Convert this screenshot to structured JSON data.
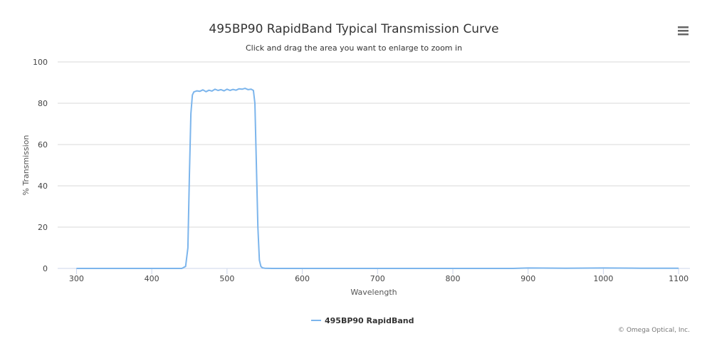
{
  "chart_data": {
    "type": "line",
    "title": "495BP90 RapidBand Typical Transmission Curve",
    "subtitle": "Click and drag the area you want to enlarge to zoom in",
    "xlabel": "Wavelength",
    "ylabel": "% Transmission",
    "xlim": [
      275,
      1115
    ],
    "ylim": [
      0,
      100
    ],
    "x_ticks": [
      300,
      400,
      500,
      600,
      700,
      800,
      900,
      1000,
      1100
    ],
    "y_ticks": [
      0,
      20,
      40,
      60,
      80,
      100
    ],
    "grid": "horizontal",
    "legend_position": "bottom-center",
    "series": [
      {
        "name": "495BP90 RapidBand",
        "color": "#7cb5ec",
        "x": [
          300,
          400,
          440,
          445,
          448,
          450,
          452,
          454,
          456,
          460,
          464,
          468,
          472,
          476,
          480,
          484,
          488,
          492,
          496,
          500,
          504,
          508,
          512,
          516,
          520,
          524,
          528,
          532,
          535,
          537,
          539,
          541,
          543,
          545,
          547,
          550,
          560,
          600,
          700,
          800,
          880,
          900,
          950,
          1000,
          1050,
          1100
        ],
        "y": [
          0,
          0,
          0,
          1,
          10,
          45,
          75,
          84,
          85.5,
          86,
          85.8,
          86.5,
          85.6,
          86.3,
          85.9,
          86.8,
          86.2,
          86.6,
          86.0,
          86.8,
          86.2,
          86.7,
          86.3,
          87.0,
          86.8,
          87.2,
          86.6,
          86.8,
          86.2,
          80,
          50,
          20,
          4,
          1,
          0.3,
          0.1,
          0,
          0,
          0,
          0,
          0,
          0.2,
          0.1,
          0.2,
          0.1,
          0.1
        ]
      }
    ]
  },
  "credits": "© Omega Optical, Inc."
}
